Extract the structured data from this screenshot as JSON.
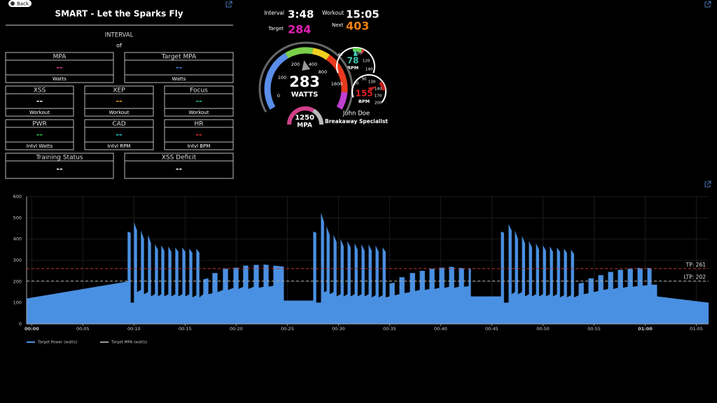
{
  "back_button": "Back",
  "title": "SMART - Let the Sparks Fly",
  "interval": {
    "label": "INTERVAL",
    "of": "of"
  },
  "tiles": [
    {
      "label": "MPA",
      "value": "--",
      "unit": "Watts",
      "color": "#e0449a"
    },
    {
      "label": "Target MPA",
      "value": "--",
      "unit": "Watts",
      "color": "#4a7fe0"
    },
    {
      "label": "XSS",
      "value": "--",
      "unit": "Workout",
      "color": "#ffffff"
    },
    {
      "label": "XEP",
      "value": "--",
      "unit": "Workout",
      "color": "#f0a020"
    },
    {
      "label": "Focus",
      "value": "--",
      "unit": "Workout",
      "color": "#22cc88"
    },
    {
      "label": "PWR",
      "value": "--",
      "unit": "Intvl Watts",
      "color": "#22cc44"
    },
    {
      "label": "CAD",
      "value": "--",
      "unit": "Intvl RPM",
      "color": "#22cccc"
    },
    {
      "label": "HR",
      "value": "--",
      "unit": "Intvl BPM",
      "color": "#e03030"
    },
    {
      "label": "Training Status",
      "value": "--",
      "color": "#ffffff"
    },
    {
      "label": "XSS Deficit",
      "value": "--",
      "color": "#ffffff"
    }
  ],
  "timer": {
    "interval_label": "Interval",
    "interval": "3:48",
    "workout_label": "Workout",
    "workout": "15:05",
    "target_label": "Target",
    "target": 284,
    "next_label": "Next",
    "next": 403
  },
  "power_gauge": {
    "ticks": [
      0,
      100,
      200,
      400,
      800,
      1600
    ],
    "value": 283,
    "unit": "WATTS"
  },
  "rpm_gauge": {
    "ticks": [
      40,
      100,
      120,
      140
    ],
    "value": 78,
    "unit": "RPM"
  },
  "bpm_gauge": {
    "ticks": [
      50,
      90,
      130,
      140,
      170,
      200
    ],
    "value": 155,
    "unit": "BPM"
  },
  "mpa_gauge": {
    "value": 1250,
    "unit": "MPA"
  },
  "rider": {
    "name": "John Doe",
    "type": "Breakaway Specialist"
  },
  "chart_data": {
    "type": "area",
    "x": [
      -0.5,
      9.38,
      9.38,
      9.68,
      9.68,
      10.0,
      10.0,
      10.3,
      10.3,
      10.68,
      10.68,
      10.98,
      10.98,
      11.37,
      11.37,
      11.67,
      11.67,
      12.05,
      12.05,
      12.35,
      12.35,
      12.67,
      12.67,
      12.97,
      12.97,
      13.36,
      13.36,
      13.66,
      13.66,
      14.04,
      14.04,
      14.34,
      14.34,
      14.73,
      14.73,
      15.03,
      15.03,
      15.41,
      15.41,
      15.71,
      15.71,
      16.1,
      16.1,
      16.4,
      16.4,
      16.78,
      16.78,
      17.28,
      17.28,
      17.67,
      17.67,
      18.17,
      18.17,
      18.7,
      18.7,
      19.2,
      19.2,
      19.73,
      19.73,
      20.23,
      20.23,
      20.68,
      20.68,
      21.18,
      21.18,
      21.71,
      21.71,
      22.21,
      22.21,
      22.67,
      22.67,
      23.17,
      23.17,
      23.63,
      23.63,
      24.66,
      24.66,
      27.53,
      27.53,
      27.83,
      27.83,
      28.29,
      28.29,
      28.59,
      28.59,
      28.84,
      28.84,
      29.14,
      29.14,
      29.52,
      29.52,
      29.82,
      29.82,
      30.21,
      30.21,
      30.51,
      30.51,
      30.89,
      30.89,
      31.19,
      31.19,
      31.58,
      31.58,
      31.88,
      31.88,
      32.26,
      32.26,
      32.56,
      32.56,
      32.95,
      32.95,
      33.25,
      33.25,
      33.63,
      33.63,
      33.93,
      33.93,
      34.32,
      34.32,
      34.62,
      34.62,
      35.0,
      35.0,
      35.5,
      35.5,
      35.96,
      35.96,
      36.46,
      36.46,
      36.99,
      36.99,
      37.49,
      37.49,
      37.95,
      37.95,
      38.45,
      38.45,
      38.9,
      38.9,
      39.4,
      39.4,
      39.86,
      39.86,
      40.36,
      40.36,
      40.82,
      40.82,
      41.32,
      41.32,
      41.78,
      41.78,
      42.28,
      42.28,
      42.74,
      42.74,
      42.95,
      42.95,
      45.89,
      45.89,
      46.19,
      46.19,
      46.64,
      46.64,
      46.94,
      46.94,
      47.26,
      47.26,
      47.56,
      47.56,
      47.95,
      47.95,
      48.25,
      48.25,
      48.63,
      48.63,
      48.93,
      48.93,
      49.32,
      49.32,
      49.62,
      49.62,
      50.0,
      50.0,
      50.3,
      50.3,
      50.68,
      50.68,
      50.98,
      50.98,
      51.37,
      51.37,
      51.67,
      51.67,
      52.05,
      52.05,
      52.35,
      52.35,
      52.74,
      52.74,
      53.04,
      53.04,
      53.49,
      53.49,
      53.99,
      53.99,
      54.45,
      54.45,
      54.95,
      54.95,
      55.41,
      55.41,
      55.91,
      55.91,
      56.37,
      56.37,
      56.87,
      56.87,
      57.33,
      57.33,
      57.83,
      57.83,
      58.29,
      58.29,
      58.79,
      58.79,
      59.25,
      59.25,
      59.75,
      59.75,
      60.21,
      60.21,
      60.62,
      60.62,
      61.16,
      61.16,
      66.2
    ],
    "series": [
      {
        "name": "Target Power (watts)",
        "color": "#4a90e2",
        "values": [
          120,
          200,
          435,
          430,
          100,
          100,
          480,
          440,
          150,
          160,
          440,
          400,
          140,
          150,
          420,
          380,
          130,
          140,
          375,
          350,
          130,
          140,
          370,
          345,
          130,
          140,
          365,
          340,
          130,
          140,
          360,
          340,
          130,
          140,
          360,
          340,
          130,
          140,
          355,
          335,
          125,
          135,
          355,
          335,
          125,
          140,
          210,
          215,
          140,
          145,
          240,
          240,
          150,
          160,
          260,
          260,
          160,
          170,
          265,
          265,
          165,
          175,
          275,
          275,
          165,
          175,
          278,
          278,
          170,
          175,
          280,
          278,
          175,
          180,
          275,
          270,
          110,
          110,
          435,
          430,
          100,
          100,
          525,
          480,
          150,
          155,
          460,
          420,
          140,
          150,
          420,
          385,
          130,
          140,
          400,
          365,
          130,
          140,
          390,
          360,
          130,
          140,
          380,
          350,
          130,
          140,
          375,
          345,
          130,
          140,
          375,
          345,
          125,
          135,
          370,
          340,
          125,
          135,
          360,
          340,
          125,
          130,
          190,
          195,
          135,
          140,
          220,
          220,
          145,
          150,
          240,
          240,
          155,
          160,
          250,
          250,
          160,
          165,
          260,
          260,
          165,
          170,
          265,
          265,
          170,
          175,
          270,
          268,
          170,
          175,
          265,
          262,
          175,
          178,
          265,
          260,
          130,
          130,
          435,
          430,
          100,
          100,
          470,
          440,
          140,
          150,
          440,
          400,
          140,
          150,
          415,
          380,
          130,
          140,
          390,
          360,
          130,
          140,
          380,
          350,
          130,
          140,
          370,
          345,
          130,
          140,
          365,
          340,
          130,
          140,
          360,
          340,
          125,
          135,
          355,
          335,
          125,
          135,
          350,
          330,
          125,
          135,
          190,
          195,
          140,
          145,
          215,
          215,
          150,
          155,
          230,
          230,
          160,
          165,
          245,
          245,
          165,
          170,
          255,
          255,
          170,
          175,
          260,
          260,
          175,
          178,
          265,
          262,
          180,
          182,
          265,
          262,
          185,
          185,
          130,
          100
        ]
      }
    ],
    "extra_legend": [
      {
        "name": "Target MPA (watts)",
        "color": "#999999"
      }
    ],
    "plot_lines": [
      {
        "value": 261,
        "label": "TP: 261",
        "color": "#c0392b"
      },
      {
        "value": 202,
        "label": "LTP: 202",
        "color": "#aaaaaa"
      }
    ],
    "xlim": [
      -0.5,
      66.2
    ],
    "xticks": [
      {
        "value": 0,
        "label": "00:00"
      },
      {
        "value": 5,
        "label": "00:05"
      },
      {
        "value": 10,
        "label": "00:10"
      },
      {
        "value": 15,
        "label": "00:15"
      },
      {
        "value": 20,
        "label": "00:20"
      },
      {
        "value": 25,
        "label": "00:25"
      },
      {
        "value": 30,
        "label": "00:30"
      },
      {
        "value": 35,
        "label": "00:35"
      },
      {
        "value": 40,
        "label": "00:40"
      },
      {
        "value": 45,
        "label": "00:45"
      },
      {
        "value": 50,
        "label": "00:50"
      },
      {
        "value": 55,
        "label": "00:55"
      },
      {
        "value": 60,
        "label": "01:00"
      },
      {
        "value": 65,
        "label": "01:05"
      }
    ],
    "ylim": [
      0,
      600
    ],
    "yticks": [
      0,
      100,
      200,
      300,
      400,
      500,
      600
    ],
    "grid": true
  }
}
